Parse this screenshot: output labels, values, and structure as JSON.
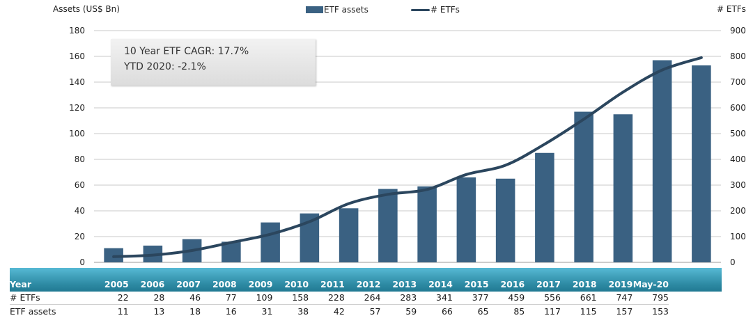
{
  "chart_data": {
    "type": "bar+line",
    "title": "",
    "left_axis_label": "Assets (US$ Bn)",
    "right_axis_label": "# ETFs",
    "categories": [
      "2005",
      "2006",
      "2007",
      "2008",
      "2009",
      "2010",
      "2011",
      "2012",
      "2013",
      "2014",
      "2015",
      "2016",
      "2017",
      "2018",
      "2019",
      "May-20"
    ],
    "series": [
      {
        "name": "ETF assets",
        "type": "bar",
        "axis": "left",
        "color": "#3a6182",
        "values": [
          11,
          13,
          18,
          16,
          31,
          38,
          42,
          57,
          59,
          66,
          65,
          85,
          117,
          115,
          157,
          153
        ]
      },
      {
        "name": "# ETFs",
        "type": "line",
        "axis": "right",
        "color": "#2b465e",
        "values": [
          22,
          28,
          46,
          77,
          109,
          158,
          228,
          264,
          283,
          341,
          377,
          459,
          556,
          661,
          747,
          795
        ]
      }
    ],
    "ylim_left": [
      0,
      180
    ],
    "yticks_left": [
      "0",
      "20",
      "40",
      "60",
      "80",
      "100",
      "120",
      "140",
      "160",
      "180"
    ],
    "ylim_right": [
      0,
      900
    ],
    "yticks_right": [
      "0",
      "100",
      "200",
      "300",
      "400",
      "500",
      "600",
      "700",
      "800",
      "900"
    ],
    "grid": true,
    "legend_position": "top-center",
    "annotations": [
      "10 Year ETF CAGR: 17.7%",
      "YTD 2020: -2.1%"
    ]
  },
  "legend": {
    "bars": "ETF assets",
    "line": "# ETFs"
  },
  "callout": {
    "line1": "10 Year ETF CAGR: 17.7%",
    "line2": "YTD 2020: -2.1%"
  },
  "table": {
    "header_label": "Year",
    "row1_label": "# ETFs",
    "row2_label": "ETF assets"
  }
}
